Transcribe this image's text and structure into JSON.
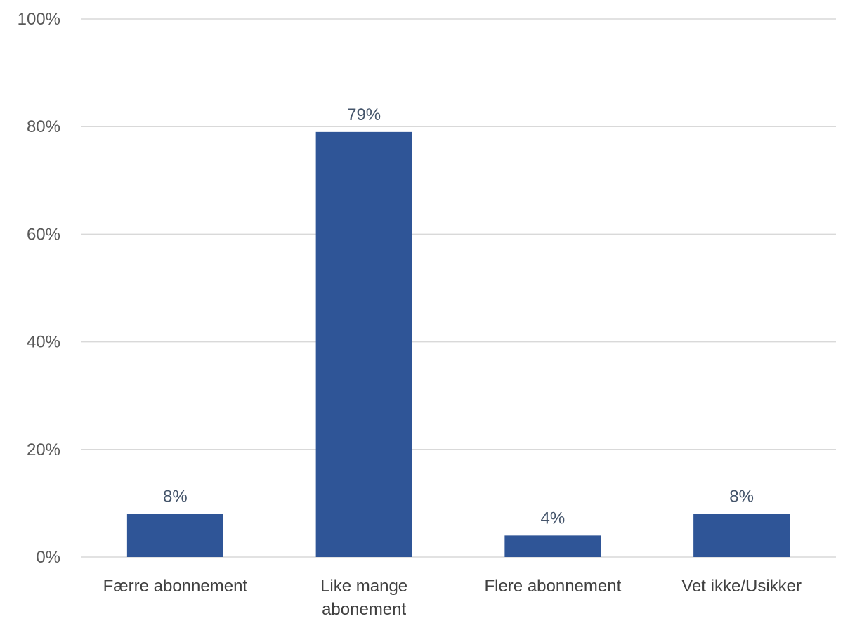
{
  "chart_data": {
    "type": "bar",
    "title": "",
    "xlabel": "",
    "ylabel": "",
    "categories": [
      "Færre abonnement",
      "Like mange abonement",
      "Flere abonnement",
      "Vet ikke/Usikker"
    ],
    "category_lines": [
      [
        "Færre abonnement"
      ],
      [
        "Like mange",
        "abonement"
      ],
      [
        "Flere abonnement"
      ],
      [
        "Vet ikke/Usikker"
      ]
    ],
    "values": [
      8,
      79,
      4,
      8
    ],
    "data_labels": [
      "8%",
      "79%",
      "4%",
      "8%"
    ],
    "ylim": [
      0,
      100
    ],
    "yticks": [
      0,
      20,
      40,
      60,
      80,
      100
    ],
    "ytick_labels": [
      "0%",
      "20%",
      "40%",
      "60%",
      "80%",
      "100%"
    ],
    "grid": true,
    "legend": "none",
    "bar_color": "#2f5597",
    "gridline_color": "#d9d9d9"
  }
}
